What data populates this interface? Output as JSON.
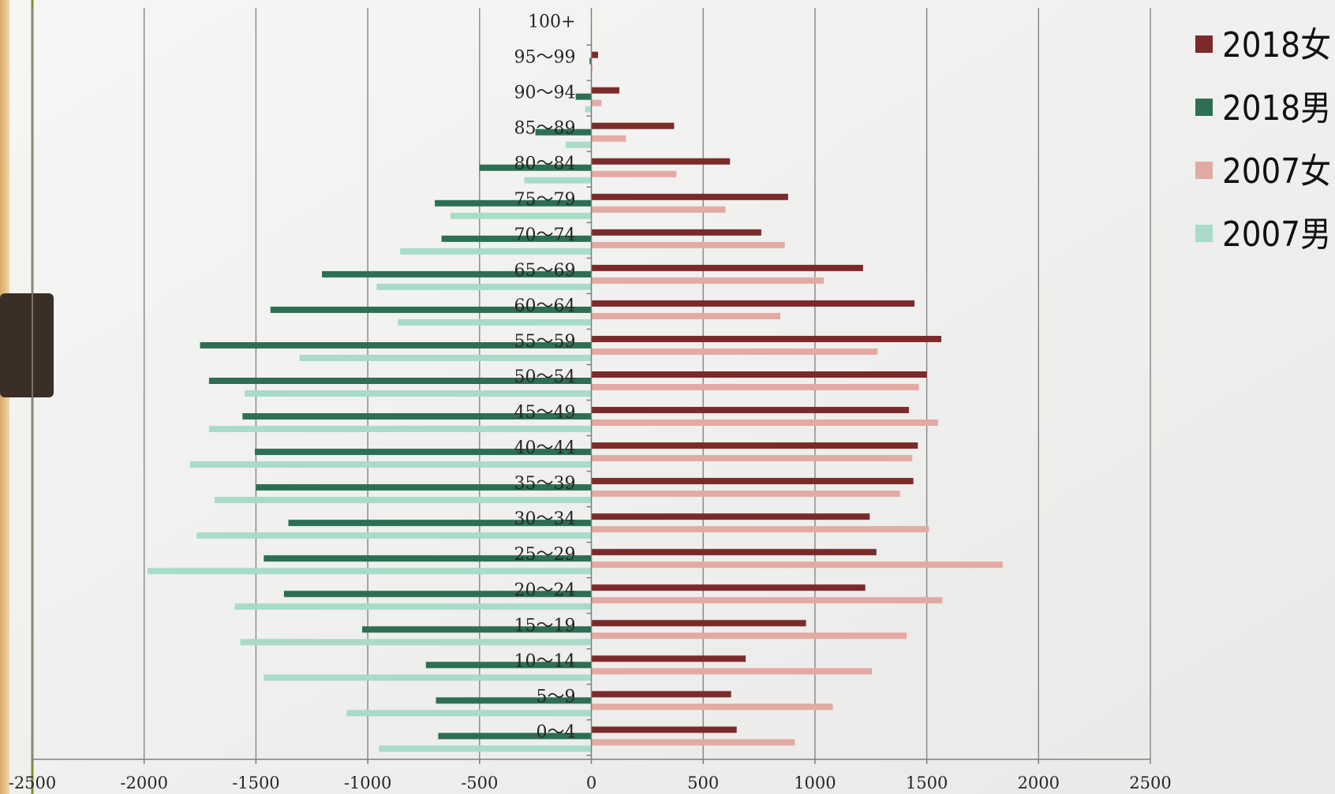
{
  "chart_data": {
    "type": "bar",
    "orientation": "horizontal",
    "categories": [
      "0～4",
      "5～9",
      "10～14",
      "15～19",
      "20～24",
      "25～29",
      "30～34",
      "35～39",
      "40～44",
      "45～49",
      "50～54",
      "55～59",
      "60～64",
      "65～69",
      "70～74",
      "75～79",
      "80～84",
      "85～89",
      "90～94",
      "95～99",
      "100+"
    ],
    "series": [
      {
        "name": "2018女",
        "color": "#7b2a2a",
        "values": [
          650,
          625,
          690,
          960,
          1225,
          1275,
          1245,
          1440,
          1460,
          1420,
          1500,
          1565,
          1445,
          1215,
          760,
          880,
          620,
          370,
          125,
          30,
          0
        ]
      },
      {
        "name": "2018男",
        "color": "#2c6f52",
        "values": [
          -685,
          -695,
          -740,
          -1025,
          -1375,
          -1465,
          -1355,
          -1500,
          -1505,
          -1560,
          -1710,
          -1750,
          -1435,
          -1205,
          -670,
          -700,
          -500,
          -250,
          -70,
          -8,
          0
        ]
      },
      {
        "name": "2007女",
        "color": "#e3aaa4",
        "values": [
          910,
          1080,
          1255,
          1410,
          1570,
          1840,
          1510,
          1380,
          1435,
          1550,
          1465,
          1280,
          845,
          1040,
          865,
          600,
          380,
          155,
          45,
          5,
          0
        ]
      },
      {
        "name": "2007男",
        "color": "#a8dcc8",
        "values": [
          -950,
          -1095,
          -1465,
          -1570,
          -1595,
          -1985,
          -1765,
          -1685,
          -1795,
          -1710,
          -1550,
          -1305,
          -865,
          -960,
          -855,
          -630,
          -300,
          -115,
          -28,
          -3,
          0
        ]
      }
    ],
    "xlim": [
      -2500,
      2500
    ],
    "xticks": [
      "-2500",
      "-2000",
      "-1500",
      "-1000",
      "-500",
      "0",
      "500",
      "1000",
      "1500",
      "2000",
      "2500"
    ],
    "grid": true,
    "legend": "right"
  }
}
